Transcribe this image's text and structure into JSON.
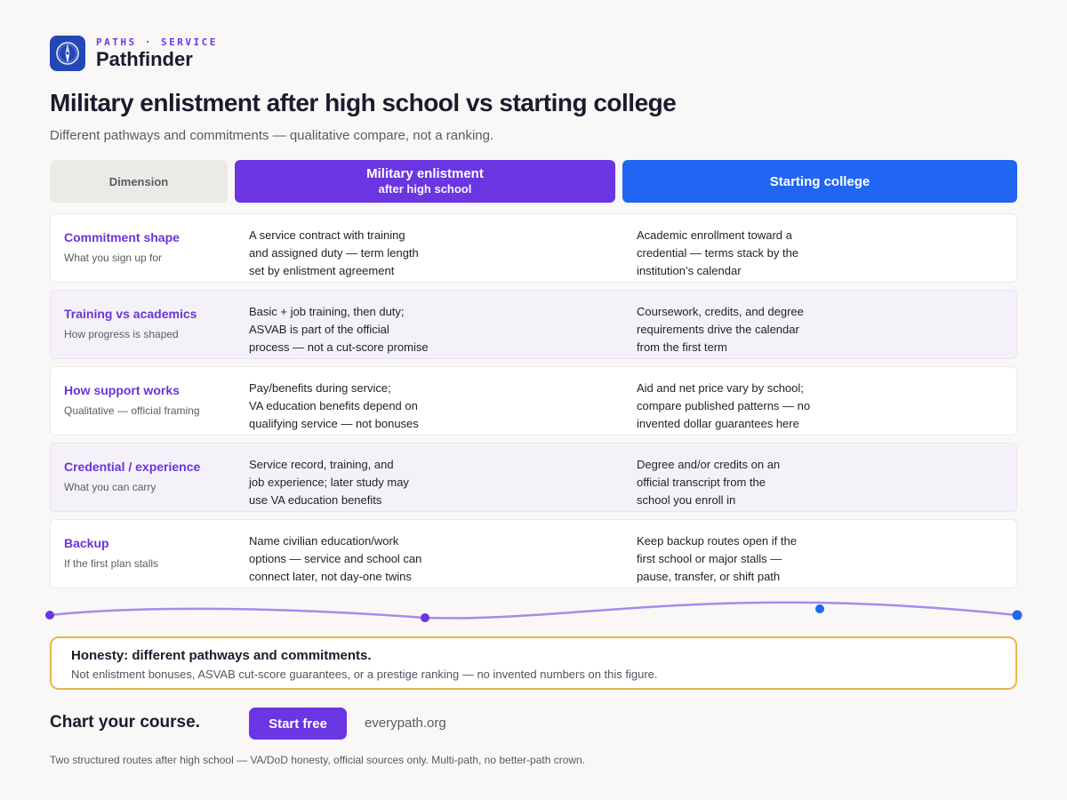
{
  "brand": {
    "eyebrow": "PATHS · SERVICE",
    "name": "Pathfinder",
    "icon": "compass-icon",
    "color": "#2447b8"
  },
  "page": {
    "title": "Military enlistment after high school vs starting college",
    "subtitle": "Different pathways and commitments — qualitative compare, not a ranking."
  },
  "columns": {
    "dimension": "Dimension",
    "military_line1": "Military enlistment",
    "military_line2": "after high school",
    "college": "Starting college",
    "military_color": "#6b35e2",
    "college_color": "#2166f3"
  },
  "rows": [
    {
      "title": "Commitment shape",
      "sub": "What you sign up for",
      "military": "A service contract with training\nand assigned duty — term length\nset by enlistment agreement",
      "college": "Academic enrollment toward a\ncredential — terms stack by the\ninstitution’s calendar"
    },
    {
      "title": "Training vs academics",
      "sub": "How progress is shaped",
      "military": "Basic + job training, then duty;\nASVAB is part of the official\nprocess — not a cut-score promise",
      "college": "Coursework, credits, and degree\nrequirements drive the calendar\nfrom the first term"
    },
    {
      "title": "How support works",
      "sub": "Qualitative — official framing",
      "military": "Pay/benefits during service;\nVA education benefits depend on\nqualifying service — not bonuses",
      "college": "Aid and net price vary by school;\ncompare published patterns — no\ninvented dollar guarantees here"
    },
    {
      "title": "Credential / experience",
      "sub": "What you can carry",
      "military": "Service record, training, and\njob experience; later study may\nuse VA education benefits",
      "college": "Degree and/or credits on an\nofficial transcript from the\nschool you enroll in"
    },
    {
      "title": "Backup",
      "sub": "If the first plan stalls",
      "military": "Name civilian education/work\noptions — service and school can\nconnect later, not day-one twins",
      "college": "Keep backup routes open if the\nfirst school or major stalls —\npause, transfer, or shift path"
    }
  ],
  "honesty": {
    "title": "Honesty: different pathways and commitments.",
    "text": "Not enlistment bonuses, ASVAB cut-score guarantees, or a prestige ranking — no invented numbers on this figure.",
    "border_color": "#e8b54a"
  },
  "cta": {
    "headline": "Chart your course.",
    "button": "Start free",
    "link": "everypath.org"
  },
  "footer": "Two structured routes after high school — VA/DoD honesty, official sources only. Multi-path, no better-path crown."
}
